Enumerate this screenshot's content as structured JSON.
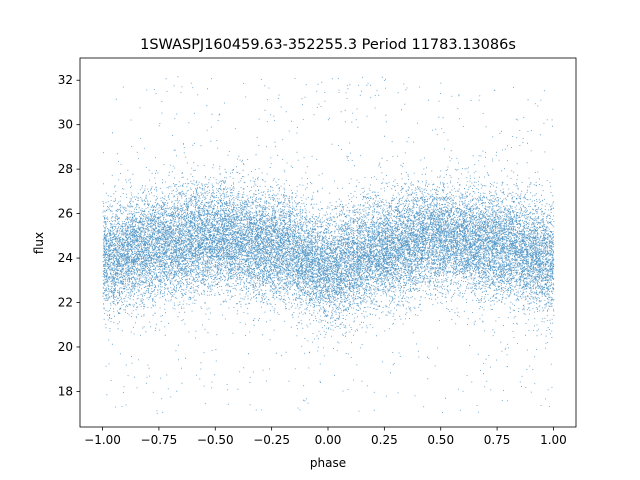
{
  "chart_data": {
    "type": "scatter",
    "title": "1SWASPJ160459.63-352255.3 Period 11783.13086s",
    "xlabel": "phase",
    "ylabel": "flux",
    "xlim": [
      -1.1,
      1.1
    ],
    "ylim": [
      16.4,
      33.0
    ],
    "x_ticks": [
      -1.0,
      -0.75,
      -0.5,
      -0.25,
      0.0,
      0.25,
      0.5,
      0.75,
      1.0
    ],
    "x_tick_labels": [
      "−1.00",
      "−0.75",
      "−0.50",
      "−0.25",
      "0.00",
      "0.25",
      "0.50",
      "0.75",
      "1.00"
    ],
    "y_ticks": [
      18,
      20,
      22,
      24,
      26,
      28,
      30,
      32
    ],
    "y_tick_labels": [
      "18",
      "20",
      "22",
      "24",
      "26",
      "28",
      "30",
      "32"
    ],
    "grid": false,
    "series": [
      {
        "color": "#1f77b4",
        "phase_range": [
          -1.0,
          1.0
        ],
        "flux_range_plotted": [
          17.0,
          32.2
        ],
        "trend_phase": [
          -1.0,
          -0.75,
          -0.5,
          -0.25,
          0.0,
          0.25,
          0.5,
          0.75,
          1.0
        ],
        "trend_flux": [
          24.0,
          24.6,
          25.0,
          24.6,
          23.6,
          24.4,
          25.0,
          24.6,
          24.0
        ],
        "scatter_sigma": 1.2
      }
    ]
  }
}
